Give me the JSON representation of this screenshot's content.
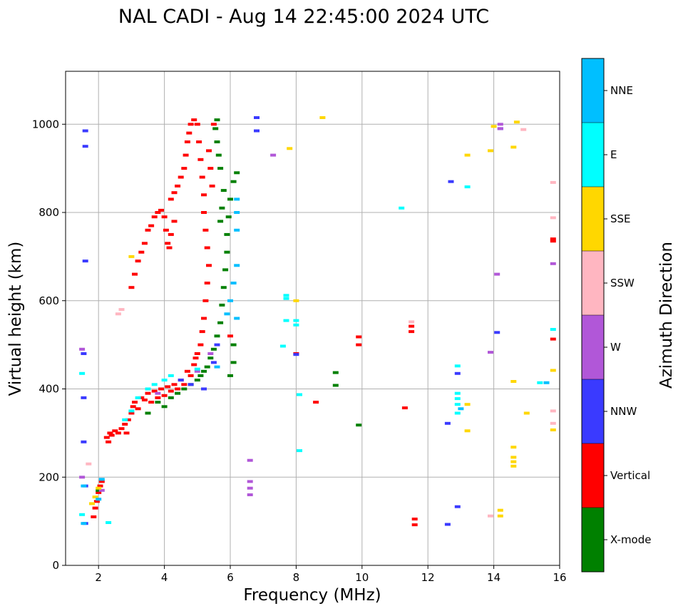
{
  "chart_data": {
    "type": "scatter",
    "title": "NAL CADI - Aug 14 22:45:00 2024 UTC",
    "xlabel": "Frequency (MHz)",
    "ylabel": "Virtual height (km)",
    "xlim": [
      1,
      16
    ],
    "ylim": [
      0,
      1120
    ],
    "xticks": [
      2,
      4,
      6,
      8,
      10,
      12,
      14,
      16
    ],
    "yticks": [
      0,
      200,
      400,
      600,
      800,
      1000
    ],
    "grid": true,
    "colorbar": {
      "label": "Azimuth Direction",
      "placement": "right",
      "categories": [
        {
          "name": "X-mode",
          "color": "#008000"
        },
        {
          "name": "Vertical",
          "color": "#ff0000"
        },
        {
          "name": "NNW",
          "color": "#3a3aff"
        },
        {
          "name": "W",
          "color": "#b157d8"
        },
        {
          "name": "SSW",
          "color": "#ffb6c1"
        },
        {
          "name": "SSE",
          "color": "#ffd700"
        },
        {
          "name": "E",
          "color": "#00ffff"
        },
        {
          "name": "NNE",
          "color": "#00bfff"
        }
      ]
    },
    "series": [
      {
        "name": "Vertical",
        "color": "#ff0000",
        "points": [
          [
            1.85,
            110
          ],
          [
            1.9,
            130
          ],
          [
            1.95,
            145
          ],
          [
            2.0,
            165
          ],
          [
            2.05,
            180
          ],
          [
            2.1,
            190
          ],
          [
            2.25,
            290
          ],
          [
            2.3,
            280
          ],
          [
            2.35,
            300
          ],
          [
            2.4,
            295
          ],
          [
            2.5,
            305
          ],
          [
            2.6,
            300
          ],
          [
            2.7,
            310
          ],
          [
            2.8,
            320
          ],
          [
            2.85,
            300
          ],
          [
            2.9,
            330
          ],
          [
            3.0,
            345
          ],
          [
            3.05,
            360
          ],
          [
            3.1,
            370
          ],
          [
            3.2,
            355
          ],
          [
            3.3,
            380
          ],
          [
            3.4,
            375
          ],
          [
            3.5,
            390
          ],
          [
            3.6,
            370
          ],
          [
            3.7,
            395
          ],
          [
            3.8,
            380
          ],
          [
            3.9,
            400
          ],
          [
            4.0,
            385
          ],
          [
            4.1,
            405
          ],
          [
            4.2,
            395
          ],
          [
            4.3,
            410
          ],
          [
            4.4,
            400
          ],
          [
            4.5,
            420
          ],
          [
            4.6,
            410
          ],
          [
            4.7,
            440
          ],
          [
            4.8,
            430
          ],
          [
            4.9,
            455
          ],
          [
            4.95,
            470
          ],
          [
            5.0,
            480
          ],
          [
            5.1,
            500
          ],
          [
            5.15,
            530
          ],
          [
            5.2,
            560
          ],
          [
            5.25,
            600
          ],
          [
            5.3,
            640
          ],
          [
            5.35,
            680
          ],
          [
            5.3,
            720
          ],
          [
            5.25,
            760
          ],
          [
            5.2,
            800
          ],
          [
            5.2,
            840
          ],
          [
            5.15,
            880
          ],
          [
            5.1,
            920
          ],
          [
            5.05,
            960
          ],
          [
            5.0,
            1000
          ],
          [
            5.35,
            940
          ],
          [
            5.4,
            900
          ],
          [
            5.45,
            860
          ],
          [
            5.5,
            1000
          ],
          [
            3.0,
            630
          ],
          [
            3.1,
            660
          ],
          [
            3.2,
            690
          ],
          [
            3.3,
            710
          ],
          [
            3.4,
            730
          ],
          [
            3.5,
            760
          ],
          [
            3.6,
            770
          ],
          [
            3.7,
            790
          ],
          [
            3.8,
            800
          ],
          [
            3.9,
            805
          ],
          [
            4.0,
            790
          ],
          [
            4.05,
            760
          ],
          [
            4.1,
            730
          ],
          [
            4.15,
            720
          ],
          [
            4.2,
            750
          ],
          [
            4.3,
            780
          ],
          [
            4.2,
            830
          ],
          [
            4.3,
            845
          ],
          [
            4.4,
            860
          ],
          [
            4.5,
            880
          ],
          [
            4.6,
            900
          ],
          [
            4.65,
            930
          ],
          [
            4.7,
            960
          ],
          [
            4.75,
            980
          ],
          [
            4.8,
            1000
          ],
          [
            4.9,
            1010
          ],
          [
            6.0,
            520
          ],
          [
            8.0,
            480
          ],
          [
            8.6,
            370
          ],
          [
            9.9,
            500
          ],
          [
            9.9,
            518
          ],
          [
            11.3,
            357
          ],
          [
            11.5,
            530
          ],
          [
            11.5,
            542
          ],
          [
            11.6,
            92
          ],
          [
            11.6,
            105
          ],
          [
            15.8,
            513
          ],
          [
            15.8,
            740
          ],
          [
            15.8,
            735
          ]
        ]
      },
      {
        "name": "X-mode",
        "color": "#008000",
        "points": [
          [
            2.0,
            170
          ],
          [
            3.5,
            345
          ],
          [
            3.8,
            370
          ],
          [
            4.0,
            360
          ],
          [
            4.2,
            380
          ],
          [
            4.4,
            390
          ],
          [
            4.6,
            400
          ],
          [
            4.8,
            410
          ],
          [
            5.0,
            420
          ],
          [
            5.1,
            430
          ],
          [
            5.2,
            440
          ],
          [
            5.3,
            450
          ],
          [
            5.4,
            470
          ],
          [
            5.5,
            490
          ],
          [
            5.6,
            520
          ],
          [
            5.7,
            550
          ],
          [
            5.75,
            590
          ],
          [
            5.8,
            630
          ],
          [
            5.85,
            670
          ],
          [
            5.9,
            710
          ],
          [
            5.9,
            750
          ],
          [
            5.95,
            790
          ],
          [
            6.0,
            830
          ],
          [
            6.1,
            870
          ],
          [
            6.2,
            890
          ],
          [
            5.8,
            850
          ],
          [
            5.75,
            810
          ],
          [
            5.7,
            780
          ],
          [
            5.6,
            960
          ],
          [
            5.55,
            990
          ],
          [
            5.6,
            1010
          ],
          [
            5.65,
            930
          ],
          [
            5.7,
            900
          ],
          [
            6.0,
            430
          ],
          [
            6.1,
            460
          ],
          [
            6.1,
            500
          ],
          [
            9.2,
            408
          ],
          [
            9.2,
            437
          ],
          [
            9.9,
            318
          ]
        ]
      },
      {
        "name": "NNW",
        "color": "#3a3aff",
        "points": [
          [
            1.6,
            95
          ],
          [
            1.6,
            180
          ],
          [
            1.55,
            280
          ],
          [
            1.55,
            380
          ],
          [
            1.55,
            480
          ],
          [
            1.6,
            690
          ],
          [
            1.6,
            950
          ],
          [
            1.6,
            985
          ],
          [
            4.5,
            420
          ],
          [
            4.8,
            410
          ],
          [
            5.2,
            400
          ],
          [
            5.5,
            460
          ],
          [
            5.6,
            500
          ],
          [
            6.8,
            985
          ],
          [
            6.8,
            1015
          ],
          [
            8.0,
            478
          ],
          [
            12.6,
            93
          ],
          [
            12.6,
            322
          ],
          [
            12.7,
            870
          ],
          [
            12.9,
            133
          ],
          [
            12.9,
            435
          ],
          [
            14.1,
            528
          ],
          [
            14.2,
            990
          ]
        ]
      },
      {
        "name": "W",
        "color": "#b157d8",
        "points": [
          [
            1.5,
            200
          ],
          [
            1.5,
            490
          ],
          [
            2.1,
            170
          ],
          [
            3.8,
            390
          ],
          [
            5.0,
            440
          ],
          [
            5.4,
            480
          ],
          [
            6.6,
            160
          ],
          [
            6.6,
            175
          ],
          [
            6.6,
            190
          ],
          [
            6.6,
            238
          ],
          [
            7.3,
            930
          ],
          [
            13.9,
            483
          ],
          [
            14.1,
            660
          ],
          [
            14.2,
            1000
          ],
          [
            14.2,
            990
          ],
          [
            15.8,
            684
          ]
        ]
      },
      {
        "name": "SSW",
        "color": "#ffb6c1",
        "points": [
          [
            1.7,
            230
          ],
          [
            2.6,
            570
          ],
          [
            2.7,
            580
          ],
          [
            11.5,
            552
          ],
          [
            13.9,
            112
          ],
          [
            14.9,
            988
          ],
          [
            15.8,
            322
          ],
          [
            15.8,
            350
          ],
          [
            15.8,
            788
          ],
          [
            15.8,
            868
          ]
        ]
      },
      {
        "name": "SSE",
        "color": "#ffd700",
        "points": [
          [
            1.8,
            140
          ],
          [
            1.9,
            155
          ],
          [
            2.0,
            175
          ],
          [
            3.0,
            700
          ],
          [
            7.8,
            945
          ],
          [
            8.0,
            600
          ],
          [
            8.8,
            1015
          ],
          [
            13.2,
            305
          ],
          [
            13.2,
            365
          ],
          [
            13.2,
            930
          ],
          [
            13.9,
            940
          ],
          [
            14.0,
            995
          ],
          [
            14.2,
            112
          ],
          [
            14.2,
            125
          ],
          [
            14.6,
            225
          ],
          [
            14.6,
            235
          ],
          [
            14.6,
            245
          ],
          [
            14.6,
            268
          ],
          [
            14.6,
            417
          ],
          [
            14.6,
            948
          ],
          [
            14.7,
            1005
          ],
          [
            15.0,
            345
          ],
          [
            15.8,
            307
          ],
          [
            15.8,
            442
          ]
        ]
      },
      {
        "name": "E",
        "color": "#00ffff",
        "points": [
          [
            1.5,
            115
          ],
          [
            1.5,
            435
          ],
          [
            2.3,
            97
          ],
          [
            2.8,
            330
          ],
          [
            3.0,
            350
          ],
          [
            3.2,
            380
          ],
          [
            3.5,
            400
          ],
          [
            3.7,
            410
          ],
          [
            4.0,
            420
          ],
          [
            4.2,
            430
          ],
          [
            5.0,
            445
          ],
          [
            7.7,
            555
          ],
          [
            7.7,
            605
          ],
          [
            7.7,
            612
          ],
          [
            8.0,
            545
          ],
          [
            8.0,
            555
          ],
          [
            8.1,
            387
          ],
          [
            8.1,
            260
          ],
          [
            7.6,
            497
          ],
          [
            11.2,
            810
          ],
          [
            12.9,
            345
          ],
          [
            12.9,
            365
          ],
          [
            12.9,
            378
          ],
          [
            12.9,
            390
          ],
          [
            12.9,
            452
          ],
          [
            13.2,
            858
          ],
          [
            15.4,
            414
          ],
          [
            15.8,
            535
          ]
        ]
      },
      {
        "name": "NNE",
        "color": "#00bfff",
        "points": [
          [
            1.55,
            95
          ],
          [
            1.55,
            180
          ],
          [
            2.0,
            150
          ],
          [
            2.1,
            195
          ],
          [
            5.6,
            450
          ],
          [
            5.9,
            570
          ],
          [
            6.0,
            600
          ],
          [
            6.1,
            640
          ],
          [
            6.2,
            680
          ],
          [
            6.2,
            760
          ],
          [
            6.2,
            800
          ],
          [
            6.2,
            830
          ],
          [
            6.2,
            560
          ],
          [
            13.0,
            355
          ],
          [
            15.6,
            414
          ]
        ]
      }
    ]
  }
}
